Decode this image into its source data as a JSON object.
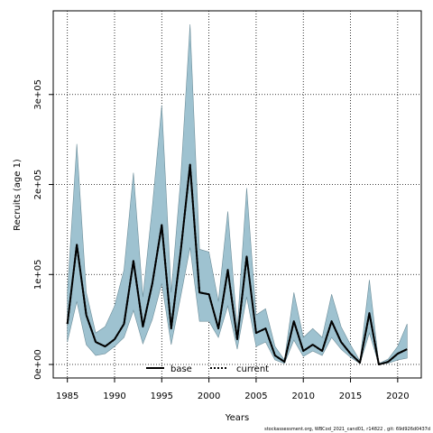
{
  "chart_data": {
    "type": "area",
    "title": "",
    "xlabel": "Years",
    "ylabel": "Recruits (age 1)",
    "xlim": [
      1983.5,
      2022.5
    ],
    "ylim": [
      -15000,
      393000
    ],
    "xticks": [
      1985,
      1990,
      1995,
      2000,
      2005,
      2010,
      2015,
      2020
    ],
    "xtick_labels": [
      "1985",
      "1990",
      "1995",
      "2000",
      "2005",
      "2010",
      "2015",
      "2020"
    ],
    "yticks": [
      0,
      100000,
      200000,
      300000
    ],
    "ytick_labels": [
      "0e+00",
      "1e+05",
      "2e+05",
      "3e+05"
    ],
    "grid": true,
    "legend_position": "bottom-center",
    "colors": {
      "band": "#9ec2d0",
      "band_edge": "#6d8e9a",
      "line": "#000000"
    },
    "legend": [
      {
        "label": "base",
        "style": "solid"
      },
      {
        "label": "current",
        "style": "dotted"
      }
    ],
    "x": [
      1985,
      1986,
      1987,
      1988,
      1989,
      1990,
      1991,
      1992,
      1993,
      1994,
      1995,
      1996,
      1997,
      1998,
      1999,
      2000,
      2001,
      2002,
      2003,
      2004,
      2005,
      2006,
      2007,
      2008,
      2009,
      2010,
      2011,
      2012,
      2013,
      2014,
      2015,
      2016,
      2017,
      2018,
      2019,
      2020,
      2021
    ],
    "series": [
      {
        "name": "current",
        "style": "dotted",
        "values": [
          45000,
          133000,
          55000,
          25000,
          20000,
          28000,
          45000,
          115000,
          42000,
          90000,
          155000,
          40000,
          125000,
          222000,
          80000,
          78000,
          40000,
          105000,
          28000,
          120000,
          35000,
          40000,
          10000,
          3000,
          48000,
          15000,
          22000,
          15000,
          48000,
          25000,
          12000,
          2000,
          57000,
          0,
          3000,
          12000,
          17000
        ]
      },
      {
        "name": "base",
        "style": "solid",
        "values": [
          45000,
          133000,
          55000,
          25000,
          20000,
          28000,
          45000,
          115000,
          42000,
          90000,
          155000,
          40000,
          125000,
          222000,
          80000,
          78000,
          40000,
          105000,
          28000,
          120000,
          35000,
          40000,
          10000,
          3000,
          48000,
          15000,
          22000,
          15000,
          48000,
          25000,
          12000,
          2000,
          57000,
          0,
          3000,
          12000,
          17000
        ]
      }
    ],
    "band": {
      "lower": [
        25000,
        70000,
        22000,
        10000,
        12000,
        20000,
        30000,
        60000,
        23000,
        50000,
        90000,
        22000,
        75000,
        130000,
        48000,
        48000,
        30000,
        65000,
        17000,
        75000,
        20000,
        25000,
        5000,
        1000,
        27000,
        9000,
        15000,
        10000,
        30000,
        17000,
        8000,
        1000,
        35000,
        0,
        1500,
        5000,
        7000
      ],
      "upper": [
        80000,
        245000,
        80000,
        35000,
        42000,
        65000,
        105000,
        213000,
        75000,
        175000,
        288000,
        80000,
        205000,
        378000,
        128000,
        125000,
        70000,
        170000,
        40000,
        196000,
        55000,
        62000,
        20000,
        5000,
        80000,
        30000,
        40000,
        30000,
        78000,
        42000,
        22000,
        4000,
        94000,
        1000,
        6000,
        20000,
        45000
      ]
    },
    "footer": "stockassessment.org, WBCod_2021_cand01, r14822 , git: 69d926d0437d"
  }
}
